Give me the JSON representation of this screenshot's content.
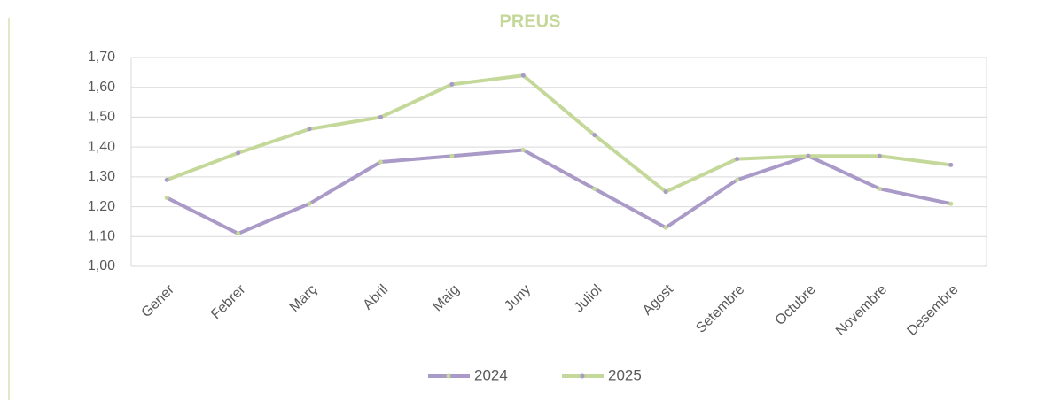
{
  "chart_data": {
    "type": "line",
    "title": "PREUS",
    "categories": [
      "Gener",
      "Febrer",
      "Març",
      "Abril",
      "Maig",
      "Juny",
      "Juliol",
      "Agost",
      "Setembre",
      "Octubre",
      "Novembre",
      "Desembre"
    ],
    "series": [
      {
        "name": "2024",
        "color": "#a99ac8",
        "marker_color": "#c4d89a",
        "values": [
          1.23,
          1.11,
          1.21,
          1.35,
          1.37,
          1.39,
          1.26,
          1.13,
          1.29,
          1.37,
          1.26,
          1.21
        ]
      },
      {
        "name": "2025",
        "color": "#c4d89a",
        "marker_color": "#a99ac8",
        "values": [
          1.29,
          1.38,
          1.46,
          1.5,
          1.61,
          1.64,
          1.44,
          1.25,
          1.36,
          1.37,
          1.37,
          1.34
        ]
      }
    ],
    "ylim": [
      1.0,
      1.7
    ],
    "yticks": [
      {
        "value": 1.0,
        "label": "1,00"
      },
      {
        "value": 1.1,
        "label": "1,10"
      },
      {
        "value": 1.2,
        "label": "1,20"
      },
      {
        "value": 1.3,
        "label": "1,30"
      },
      {
        "value": 1.4,
        "label": "1,40"
      },
      {
        "value": 1.5,
        "label": "1,50"
      },
      {
        "value": 1.6,
        "label": "1,60"
      },
      {
        "value": 1.7,
        "label": "1,70"
      }
    ],
    "grid": true,
    "legend": "bottom"
  }
}
